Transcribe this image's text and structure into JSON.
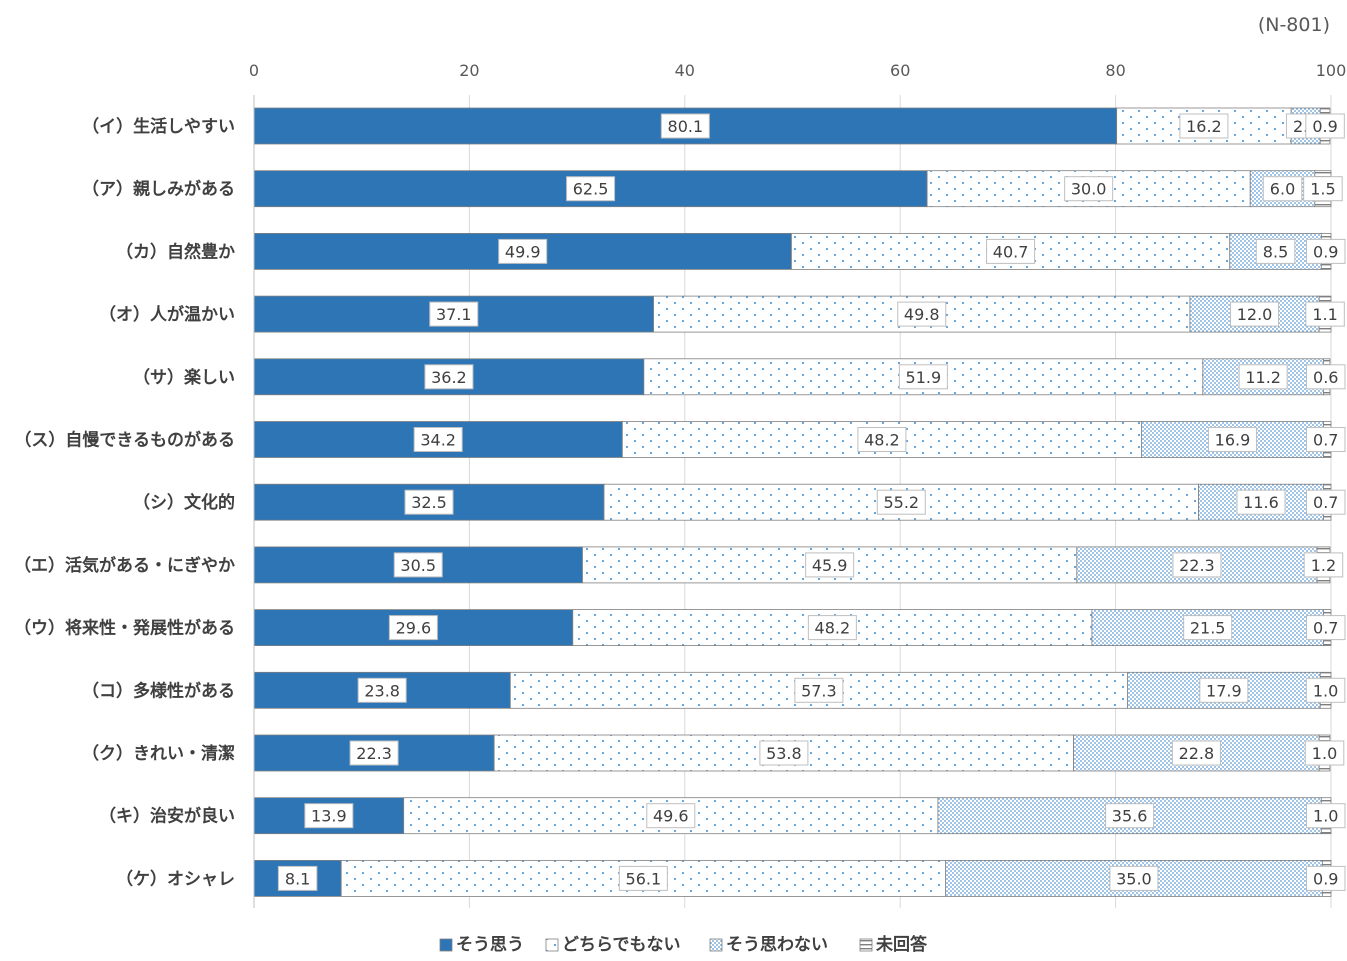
{
  "chart_data": {
    "type": "bar",
    "stacked": true,
    "orientation": "horizontal",
    "note": "(N-801)",
    "xlim": [
      0,
      100
    ],
    "x_ticks": [
      "0",
      "20",
      "40",
      "60",
      "80",
      "100"
    ],
    "grid": true,
    "legend_position": "bottom",
    "categories": [
      "（イ）生活しやすい",
      "（ア）親しみがある",
      "（カ）自然豊か",
      "（オ）人が温かい",
      "（サ）楽しい",
      "（ス）自慢できるものがある",
      "（シ）文化的",
      "（エ）活気がある・にぎやか",
      "（ウ）将来性・発展性がある",
      "（コ）多様性がある",
      "（ク）きれい・清潔",
      "（キ）治安が良い",
      "（ケ）オシャレ"
    ],
    "series": [
      {
        "name": "そう思う",
        "color": "#2e75b6",
        "pattern": "solid",
        "values": [
          80.1,
          62.5,
          49.9,
          37.1,
          36.2,
          34.2,
          32.5,
          30.5,
          29.6,
          23.8,
          22.3,
          13.9,
          8.1
        ],
        "labels": [
          "80.1",
          "62.5",
          "49.9",
          "37.1",
          "36.2",
          "34.2",
          "32.5",
          "30.5",
          "29.6",
          "23.8",
          "22.3",
          "13.9",
          "8.1"
        ]
      },
      {
        "name": "どちらでもない",
        "color": "#5b9bd5",
        "pattern": "sparse-dots",
        "values": [
          16.2,
          30.0,
          40.7,
          49.8,
          51.9,
          48.2,
          55.2,
          45.9,
          48.2,
          57.3,
          53.8,
          49.6,
          56.1
        ],
        "labels": [
          "16.2",
          "30.0",
          "40.7",
          "49.8",
          "51.9",
          "48.2",
          "55.2",
          "45.9",
          "48.2",
          "57.3",
          "53.8",
          "49.6",
          "56.1"
        ]
      },
      {
        "name": "そう思わない",
        "color": "#5b9bd5",
        "pattern": "dense-dots",
        "values": [
          2.7,
          6.0,
          8.5,
          12.0,
          11.2,
          16.9,
          11.6,
          22.3,
          21.5,
          17.9,
          22.8,
          35.6,
          35.0
        ],
        "labels": [
          "2.7",
          "6.0",
          "8.5",
          "12.0",
          "11.2",
          "16.9",
          "11.6",
          "22.3",
          "21.5",
          "17.9",
          "22.8",
          "35.6",
          "35.0"
        ]
      },
      {
        "name": "未回答",
        "color": "#7f7f7f",
        "pattern": "horizontal-lines",
        "values": [
          0.9,
          1.5,
          0.9,
          1.1,
          0.6,
          0.7,
          0.7,
          1.2,
          0.7,
          1.0,
          1.0,
          1.0,
          0.9
        ],
        "labels": [
          "0.9",
          "1.5",
          "0.9",
          "1.1",
          "0.6",
          "0.7",
          "0.7",
          "1.2",
          "0.7",
          "1.0",
          "1.0",
          "1.0",
          "0.9"
        ]
      }
    ]
  }
}
